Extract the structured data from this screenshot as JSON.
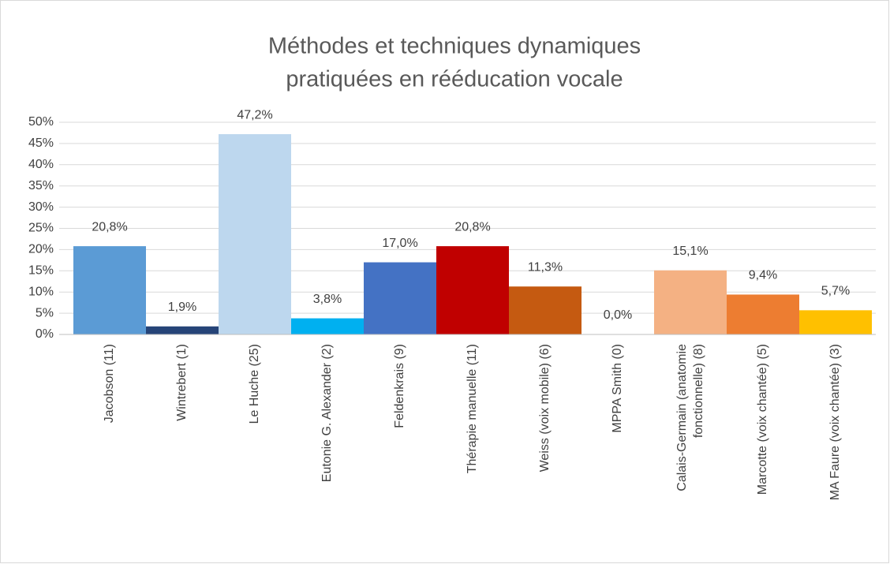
{
  "chart_data": {
    "type": "bar",
    "title": [
      "Méthodes et techniques dynamiques",
      "pratiquées en rééducation vocale"
    ],
    "categories": [
      "Jacobson (11)",
      "Wintrebert (1)",
      "Le Huche (25)",
      "Eutonie G. Alexander (2)",
      "Feldenkrais (9)",
      "Thérapie manuelle (11)",
      "Weiss (voix mobile) (6)",
      "MPPA Smith (0)",
      "Calais-Germain (anatomie fonctionnelle) (8)",
      "Marcotte (voix chantée) (5)",
      "MA Faure (voix chantée) (3)"
    ],
    "values": [
      20.8,
      1.9,
      47.2,
      3.8,
      17.0,
      20.8,
      11.3,
      0.0,
      15.1,
      9.4,
      5.7
    ],
    "value_labels": [
      "20,8%",
      "1,9%",
      "47,2%",
      "3,8%",
      "17,0%",
      "20,8%",
      "11,3%",
      "0,0%",
      "15,1%",
      "9,4%",
      "5,7%"
    ],
    "colors": [
      "#5b9bd5",
      "#264478",
      "#bdd7ee",
      "#00b0f0",
      "#4472c4",
      "#c00000",
      "#c55a11",
      "#7f7f7f",
      "#f4b183",
      "#ed7d31",
      "#ffc000"
    ],
    "ylim": [
      0,
      50
    ],
    "yticks": [
      {
        "value": 0,
        "label": "0%"
      },
      {
        "value": 5,
        "label": "5%"
      },
      {
        "value": 10,
        "label": "10%"
      },
      {
        "value": 15,
        "label": "15%"
      },
      {
        "value": 20,
        "label": "20%"
      },
      {
        "value": 25,
        "label": "25%"
      },
      {
        "value": 30,
        "label": "30%"
      },
      {
        "value": 35,
        "label": "35%"
      },
      {
        "value": 40,
        "label": "40%"
      },
      {
        "value": 45,
        "label": "45%"
      },
      {
        "value": 50,
        "label": "50%"
      }
    ],
    "grid": true
  }
}
